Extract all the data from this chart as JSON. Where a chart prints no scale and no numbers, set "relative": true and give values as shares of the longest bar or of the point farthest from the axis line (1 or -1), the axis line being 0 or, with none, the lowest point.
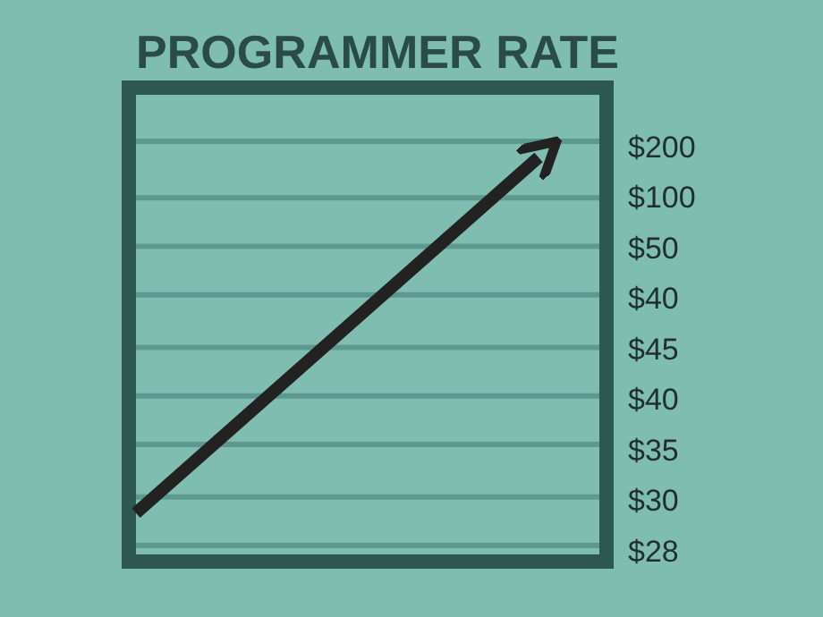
{
  "chart_data": {
    "type": "line",
    "title": "PROGRAMMER RATE",
    "relative": true,
    "categories": [
      null,
      null
    ],
    "series": [
      {
        "color": "#222222",
        "values": [
          0.12,
          1
        ]
      }
    ],
    "ref_lines": [
      {
        "axis": "y",
        "value": 1.04,
        "color": "#5e9990"
      },
      {
        "axis": "y",
        "value": 0.9,
        "color": "#5e9990"
      },
      {
        "axis": "y",
        "value": 0.78,
        "color": "#5e9990"
      },
      {
        "axis": "y",
        "value": 0.66,
        "color": "#5e9990"
      },
      {
        "axis": "y",
        "value": 0.53,
        "color": "#5e9990"
      },
      {
        "axis": "y",
        "value": 0.41,
        "color": "#5e9990"
      },
      {
        "axis": "y",
        "value": 0.29,
        "color": "#5e9990"
      },
      {
        "axis": "y",
        "value": 0.16,
        "color": "#5e9990"
      },
      {
        "axis": "y",
        "value": 0.04,
        "color": "#5e9990"
      }
    ],
    "annotations": [
      "$200",
      "$100",
      "$50",
      "$40",
      "$45",
      "$40",
      "$35",
      "$30",
      "$28"
    ],
    "marker": "none",
    "line_style": "solid"
  }
}
